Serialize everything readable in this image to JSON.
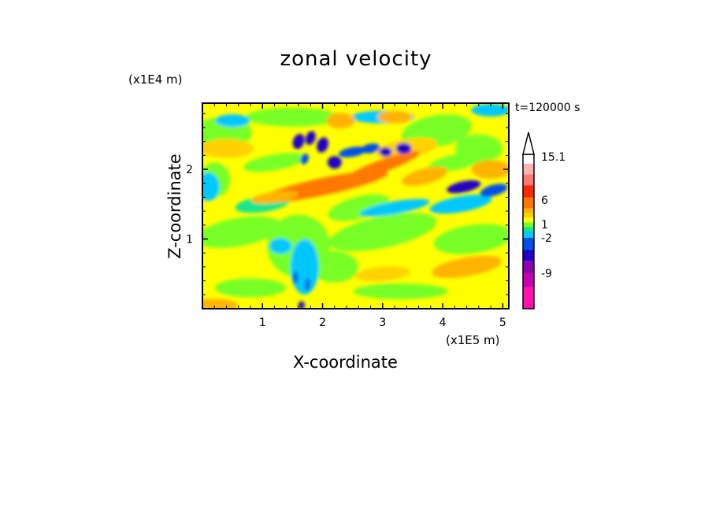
{
  "chart_data": {
    "type": "heatmap",
    "title": "zonal velocity",
    "xlabel": "X-coordinate",
    "ylabel": "Z-coordinate",
    "x_unit": "(x1E5 m)",
    "y_unit": "(x1E4 m)",
    "time_label": "t=120000 s",
    "xlim": [
      0,
      5.1
    ],
    "ylim": [
      0,
      2.95
    ],
    "x_ticks": [
      "1",
      "2",
      "3",
      "4",
      "5"
    ],
    "y_ticks": [
      "1",
      "2"
    ],
    "colorbar": {
      "labels": [
        "15.1",
        "6",
        "1",
        "-2",
        "-9"
      ],
      "colors": [
        "#ff10b0",
        "#c800b4",
        "#8c00b4",
        "#2000c8",
        "#0050e8",
        "#00c8ff",
        "#19e68c",
        "#78ff28",
        "#ffff00",
        "#ffd200",
        "#ffb400",
        "#ff7800",
        "#ff2800",
        "#ff7878",
        "#ffb4b4",
        "#ffffff"
      ],
      "extend": "max"
    },
    "field_features": [
      {
        "name": "orange jet band",
        "x_range": [
          1.0,
          3.5
        ],
        "z_center": 1.75,
        "approx_value": 6
      },
      {
        "name": "blue cores upper mid",
        "x_range": [
          1.5,
          3.2
        ],
        "z_center": 2.35,
        "approx_value": -4
      },
      {
        "name": "blue band right",
        "x_range": [
          4.0,
          5.1
        ],
        "z_center": 1.75,
        "approx_value": -4
      }
    ]
  }
}
